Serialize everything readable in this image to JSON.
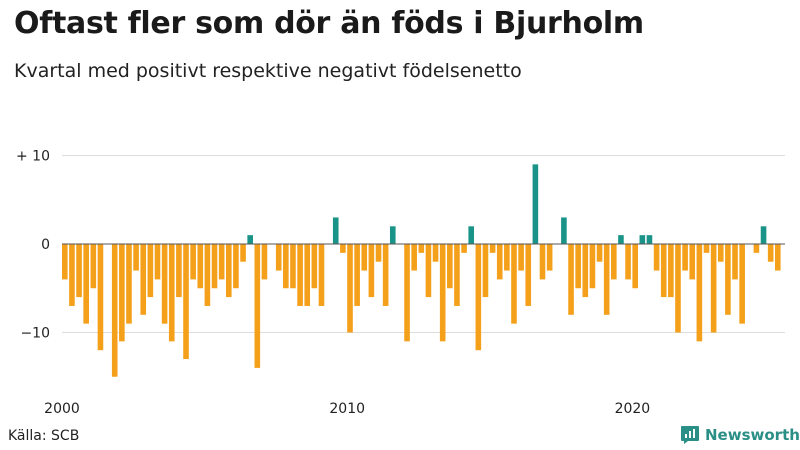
{
  "chart_data": {
    "type": "bar",
    "title": "Oftast fler som dör än föds i Bjurholm",
    "subtitle": "Kvartal med positivt respektive negativt födelsenetto",
    "source": "Källa: SCB",
    "brand": "Newsworthy",
    "x_start": "2000-Q1",
    "x_ticks": [
      "2000",
      "2010",
      "2020"
    ],
    "y_ticks": [
      "+ 10",
      "0",
      "−10"
    ],
    "ylim": [
      -16,
      11
    ],
    "grid": true,
    "colors": {
      "positive": "#1a9488",
      "negative": "#f5a01a"
    },
    "values": [
      -4,
      -7,
      -6,
      -9,
      -5,
      -12,
      0,
      -15,
      -11,
      -9,
      -3,
      -8,
      -6,
      -4,
      -9,
      -11,
      -6,
      -13,
      -4,
      -5,
      -7,
      -5,
      -4,
      -6,
      -5,
      -2,
      1,
      -14,
      -4,
      0,
      -3,
      -5,
      -5,
      -7,
      -7,
      -5,
      -7,
      0,
      3,
      -1,
      -10,
      -7,
      -3,
      -6,
      -2,
      -7,
      2,
      0,
      -11,
      -3,
      -1,
      -6,
      -2,
      -11,
      -5,
      -7,
      -1,
      2,
      -12,
      -6,
      -1,
      -4,
      -3,
      -9,
      -3,
      -7,
      9,
      -4,
      -3,
      0,
      3,
      -8,
      -5,
      -6,
      -5,
      -2,
      -8,
      -4,
      1,
      -4,
      -5,
      1,
      1,
      -3,
      -6,
      -6,
      -10,
      -3,
      -4,
      -11,
      -1,
      -10,
      -2,
      -8,
      -4,
      -9,
      0,
      -1,
      2,
      -2,
      -3
    ]
  }
}
